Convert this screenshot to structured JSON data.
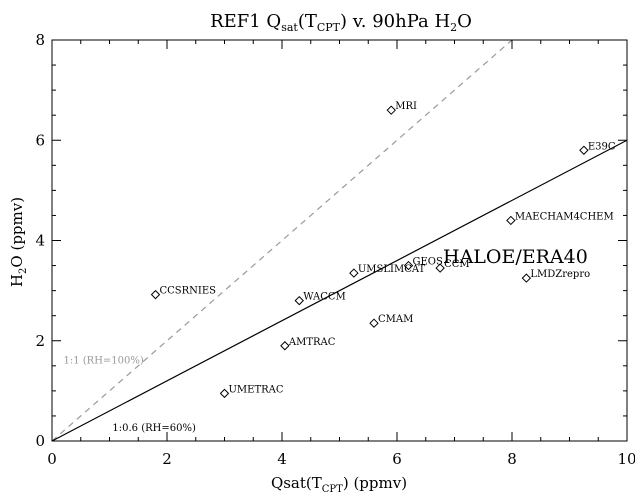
{
  "chart_data": {
    "type": "scatter",
    "title": {
      "main": "REF1 Q",
      "sub1": "sat",
      "mid": "(T",
      "sub2": "CPT",
      "end": ") v. 90hPa H",
      "sub3": "2",
      "tail": "O"
    },
    "xlabel": {
      "main": "Qsat(T",
      "sub": "CPT",
      "end": ") (ppmv)"
    },
    "ylabel": {
      "main": "H",
      "sub": "2",
      "end": "O (ppmv)"
    },
    "xlim": [
      0,
      10
    ],
    "ylim": [
      0,
      8
    ],
    "xticks": [
      0,
      2,
      4,
      6,
      8,
      10
    ],
    "yticks": [
      0,
      2,
      4,
      6,
      8
    ],
    "grid": false,
    "points": [
      {
        "name": "MRI",
        "x": 5.9,
        "y": 6.6
      },
      {
        "name": "E39C",
        "x": 9.25,
        "y": 5.8
      },
      {
        "name": "MAECHAM4CHEM",
        "x": 7.98,
        "y": 4.4
      },
      {
        "name": "GEOS",
        "x": 6.2,
        "y": 3.5
      },
      {
        "name": "CCM",
        "x": 6.75,
        "y": 3.45
      },
      {
        "name": "UMSLIMCAT",
        "x": 5.25,
        "y": 3.35
      },
      {
        "name": "LMDZrepro",
        "x": 8.25,
        "y": 3.25
      },
      {
        "name": "CCSRNIES",
        "x": 1.8,
        "y": 2.92
      },
      {
        "name": "WACCM",
        "x": 4.3,
        "y": 2.8
      },
      {
        "name": "CMAM",
        "x": 5.6,
        "y": 2.35
      },
      {
        "name": "AMTRAC",
        "x": 4.05,
        "y": 1.9
      },
      {
        "name": "UMETRAC",
        "x": 3.0,
        "y": 0.95
      }
    ],
    "annotations": [
      {
        "name": "HALOE/ERA40",
        "x": 6.8,
        "y": 3.55
      }
    ],
    "reference_lines": [
      {
        "name": "1:1 (RH=100%)",
        "slope": 1.0,
        "style": "dashed",
        "color": "#999999",
        "label_at": [
          0.2,
          1.55
        ]
      },
      {
        "name": "1:0.6 (RH=60%)",
        "slope": 0.6,
        "style": "solid",
        "color": "#000000",
        "label_at": [
          1.05,
          0.2
        ]
      }
    ]
  }
}
